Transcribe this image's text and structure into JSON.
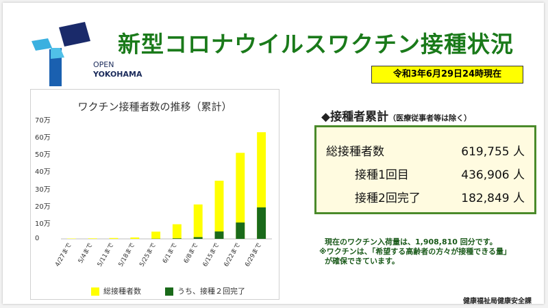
{
  "logo": {
    "line1": "OPEN",
    "line2": "YOKOHAMA"
  },
  "title": "新型コロナウイルスワクチン接種状況",
  "as_of": "令和3年6月29日24時現在",
  "chart_data": {
    "type": "bar",
    "title": "ワクチン接種者数の推移（累計）",
    "categories": [
      "4/27まで",
      "5/4まで",
      "5/11まで",
      "5/18まで",
      "5/25まで",
      "6/1まで",
      "6/8まで",
      "6/15まで",
      "6/22まで",
      "6/29まで"
    ],
    "series": [
      {
        "name": "総接種者数",
        "color": "#ffff00",
        "values": [
          2000,
          3000,
          5000,
          8000,
          42000,
          85000,
          200000,
          338000,
          500000,
          619755
        ]
      },
      {
        "name": "うち、接種２回完了",
        "color": "#1a6a1a",
        "values": [
          0,
          0,
          0,
          0,
          1000,
          3000,
          10000,
          43000,
          95000,
          182849
        ]
      }
    ],
    "yticks": [
      "70万",
      "60万",
      "50万",
      "40万",
      "30万",
      "20万",
      "10万",
      "0"
    ],
    "ylim": [
      0,
      700000
    ],
    "legend_position": "bottom",
    "grid": false
  },
  "section": {
    "heading": "◆接種者累計",
    "note": "（医療従事者等は除く）"
  },
  "stats": [
    {
      "label": "総接種者数",
      "value": "619,755 人"
    },
    {
      "label": "接種1回目",
      "value": "436,906 人"
    },
    {
      "label": "接種2回完了",
      "value": "182,849 人"
    }
  ],
  "notes": [
    "現在のワクチン入荷量は、1,908,810 回分です。",
    "※ワクチンは、「希望する高齢者の方々が接種できる量」",
    "が確保できています。"
  ],
  "department": "健康福祉局健康安全課"
}
